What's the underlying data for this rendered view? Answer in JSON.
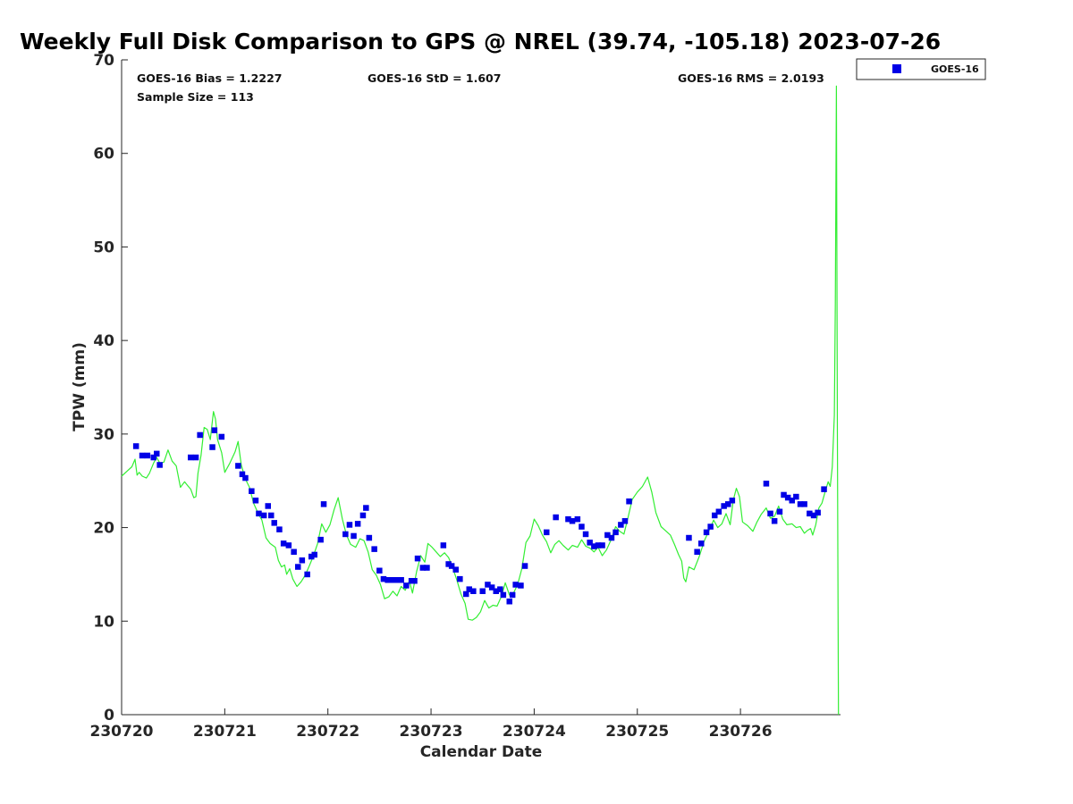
{
  "chart_data": {
    "type": "scatter",
    "title": "Weekly Full Disk Comparison to GPS @ NREL (39.74, -105.18) 2023-07-26",
    "xlabel": "Calendar Date",
    "ylabel": "TPW (mm)",
    "x_tick_labels": [
      "230720",
      "230721",
      "230722",
      "230723",
      "230724",
      "230725",
      "230726"
    ],
    "xlim": [
      0,
      6.97
    ],
    "ylim": [
      0,
      70
    ],
    "y_ticks": [
      0,
      10,
      20,
      30,
      40,
      50,
      60,
      70
    ],
    "grid": false,
    "legend": {
      "placement": "outside-top-right",
      "entries": [
        "GOES-16"
      ]
    },
    "annotations": {
      "bias": "GOES-16 Bias = 1.2227",
      "std": "GOES-16 StD = 1.607",
      "rms": "GOES-16 RMS = 2.0193",
      "sample_size": "Sample Size = 113"
    },
    "series": [
      {
        "name": "GOES-16",
        "kind": "scatter",
        "color": "#0000e6",
        "marker": "square",
        "points": [
          [
            0.14,
            28.7
          ],
          [
            0.2,
            27.7
          ],
          [
            0.25,
            27.7
          ],
          [
            0.31,
            27.5
          ],
          [
            0.34,
            27.9
          ],
          [
            0.37,
            26.7
          ],
          [
            0.67,
            27.5
          ],
          [
            0.72,
            27.5
          ],
          [
            0.76,
            29.9
          ],
          [
            0.88,
            28.6
          ],
          [
            0.9,
            30.4
          ],
          [
            0.97,
            29.7
          ],
          [
            1.13,
            26.6
          ],
          [
            1.17,
            25.7
          ],
          [
            1.2,
            25.3
          ],
          [
            1.26,
            23.9
          ],
          [
            1.3,
            22.9
          ],
          [
            1.33,
            21.5
          ],
          [
            1.38,
            21.3
          ],
          [
            1.42,
            22.3
          ],
          [
            1.45,
            21.3
          ],
          [
            1.48,
            20.5
          ],
          [
            1.53,
            19.8
          ],
          [
            1.57,
            18.3
          ],
          [
            1.62,
            18.1
          ],
          [
            1.67,
            17.4
          ],
          [
            1.71,
            15.8
          ],
          [
            1.75,
            16.5
          ],
          [
            1.8,
            15.0
          ],
          [
            1.84,
            16.9
          ],
          [
            1.87,
            17.1
          ],
          [
            1.93,
            18.7
          ],
          [
            1.96,
            22.5
          ],
          [
            2.17,
            19.3
          ],
          [
            2.21,
            20.3
          ],
          [
            2.25,
            19.1
          ],
          [
            2.29,
            20.4
          ],
          [
            2.34,
            21.3
          ],
          [
            2.37,
            22.1
          ],
          [
            2.4,
            18.9
          ],
          [
            2.45,
            17.7
          ],
          [
            2.5,
            15.4
          ],
          [
            2.54,
            14.5
          ],
          [
            2.58,
            14.4
          ],
          [
            2.62,
            14.4
          ],
          [
            2.66,
            14.4
          ],
          [
            2.71,
            14.4
          ],
          [
            2.76,
            13.8
          ],
          [
            2.81,
            14.3
          ],
          [
            2.84,
            14.3
          ],
          [
            2.87,
            16.7
          ],
          [
            2.92,
            15.7
          ],
          [
            2.96,
            15.7
          ],
          [
            3.12,
            18.1
          ],
          [
            3.17,
            16.1
          ],
          [
            3.2,
            15.9
          ],
          [
            3.24,
            15.5
          ],
          [
            3.28,
            14.5
          ],
          [
            3.34,
            12.9
          ],
          [
            3.37,
            13.4
          ],
          [
            3.41,
            13.2
          ],
          [
            3.5,
            13.2
          ],
          [
            3.55,
            13.9
          ],
          [
            3.59,
            13.6
          ],
          [
            3.63,
            13.2
          ],
          [
            3.67,
            13.4
          ],
          [
            3.7,
            12.8
          ],
          [
            3.76,
            12.1
          ],
          [
            3.79,
            12.8
          ],
          [
            3.82,
            13.9
          ],
          [
            3.87,
            13.8
          ],
          [
            3.91,
            15.9
          ],
          [
            4.12,
            19.5
          ],
          [
            4.21,
            21.1
          ],
          [
            4.33,
            20.9
          ],
          [
            4.37,
            20.7
          ],
          [
            4.42,
            20.9
          ],
          [
            4.46,
            20.1
          ],
          [
            4.5,
            19.3
          ],
          [
            4.54,
            18.4
          ],
          [
            4.58,
            18.0
          ],
          [
            4.62,
            18.1
          ],
          [
            4.66,
            18.1
          ],
          [
            4.71,
            19.2
          ],
          [
            4.75,
            18.9
          ],
          [
            4.79,
            19.5
          ],
          [
            4.84,
            20.3
          ],
          [
            4.88,
            20.7
          ],
          [
            4.92,
            22.8
          ],
          [
            5.5,
            18.9
          ],
          [
            5.58,
            17.4
          ],
          [
            5.62,
            18.3
          ],
          [
            5.67,
            19.5
          ],
          [
            5.71,
            20.1
          ],
          [
            5.75,
            21.3
          ],
          [
            5.79,
            21.7
          ],
          [
            5.84,
            22.3
          ],
          [
            5.88,
            22.5
          ],
          [
            5.92,
            22.9
          ],
          [
            6.25,
            24.7
          ],
          [
            6.29,
            21.5
          ],
          [
            6.33,
            20.7
          ],
          [
            6.38,
            21.7
          ],
          [
            6.42,
            23.5
          ],
          [
            6.46,
            23.2
          ],
          [
            6.5,
            22.9
          ],
          [
            6.54,
            23.3
          ],
          [
            6.58,
            22.5
          ],
          [
            6.62,
            22.5
          ],
          [
            6.67,
            21.5
          ],
          [
            6.71,
            21.3
          ],
          [
            6.75,
            21.6
          ],
          [
            6.81,
            24.1
          ]
        ]
      },
      {
        "kind": "line",
        "color": "#33ee33",
        "points": [
          [
            0.0,
            25.5
          ],
          [
            0.05,
            26.0
          ],
          [
            0.1,
            26.5
          ],
          [
            0.13,
            27.3
          ],
          [
            0.15,
            25.6
          ],
          [
            0.17,
            25.9
          ],
          [
            0.2,
            25.5
          ],
          [
            0.24,
            25.3
          ],
          [
            0.27,
            25.8
          ],
          [
            0.31,
            26.9
          ],
          [
            0.34,
            27.5
          ],
          [
            0.37,
            26.9
          ],
          [
            0.41,
            27.0
          ],
          [
            0.45,
            28.3
          ],
          [
            0.49,
            27.1
          ],
          [
            0.53,
            26.6
          ],
          [
            0.57,
            24.3
          ],
          [
            0.61,
            24.9
          ],
          [
            0.64,
            24.5
          ],
          [
            0.67,
            24.1
          ],
          [
            0.7,
            23.2
          ],
          [
            0.72,
            23.3
          ],
          [
            0.74,
            25.8
          ],
          [
            0.77,
            27.7
          ],
          [
            0.8,
            30.7
          ],
          [
            0.83,
            30.5
          ],
          [
            0.86,
            29.4
          ],
          [
            0.89,
            32.4
          ],
          [
            0.91,
            31.6
          ],
          [
            0.93,
            29.4
          ],
          [
            0.97,
            28.0
          ],
          [
            1.0,
            25.9
          ],
          [
            1.05,
            26.9
          ],
          [
            1.1,
            28.1
          ],
          [
            1.13,
            29.2
          ],
          [
            1.16,
            26.7
          ],
          [
            1.2,
            25.2
          ],
          [
            1.24,
            24.3
          ],
          [
            1.28,
            22.6
          ],
          [
            1.32,
            21.6
          ],
          [
            1.36,
            20.8
          ],
          [
            1.4,
            18.9
          ],
          [
            1.44,
            18.3
          ],
          [
            1.49,
            17.9
          ],
          [
            1.52,
            16.5
          ],
          [
            1.55,
            15.8
          ],
          [
            1.58,
            16.0
          ],
          [
            1.6,
            15.0
          ],
          [
            1.63,
            15.6
          ],
          [
            1.66,
            14.5
          ],
          [
            1.7,
            13.7
          ],
          [
            1.74,
            14.2
          ],
          [
            1.78,
            14.9
          ],
          [
            1.82,
            15.9
          ],
          [
            1.86,
            17.0
          ],
          [
            1.9,
            18.3
          ],
          [
            1.94,
            20.4
          ],
          [
            1.98,
            19.5
          ],
          [
            2.02,
            20.3
          ],
          [
            2.06,
            21.9
          ],
          [
            2.1,
            23.2
          ],
          [
            2.14,
            20.9
          ],
          [
            2.18,
            19.2
          ],
          [
            2.22,
            18.2
          ],
          [
            2.27,
            17.9
          ],
          [
            2.31,
            18.8
          ],
          [
            2.35,
            18.6
          ],
          [
            2.39,
            17.4
          ],
          [
            2.43,
            15.5
          ],
          [
            2.47,
            14.9
          ],
          [
            2.51,
            13.9
          ],
          [
            2.55,
            12.4
          ],
          [
            2.59,
            12.6
          ],
          [
            2.63,
            13.2
          ],
          [
            2.67,
            12.7
          ],
          [
            2.71,
            13.7
          ],
          [
            2.75,
            13.3
          ],
          [
            2.79,
            14.3
          ],
          [
            2.82,
            13.0
          ],
          [
            2.86,
            15.3
          ],
          [
            2.9,
            17.0
          ],
          [
            2.94,
            16.3
          ],
          [
            2.97,
            18.3
          ],
          [
            3.01,
            17.9
          ],
          [
            3.05,
            17.4
          ],
          [
            3.09,
            16.9
          ],
          [
            3.13,
            17.3
          ],
          [
            3.17,
            16.8
          ],
          [
            3.21,
            15.7
          ],
          [
            3.25,
            14.4
          ],
          [
            3.29,
            12.9
          ],
          [
            3.33,
            11.9
          ],
          [
            3.36,
            10.2
          ],
          [
            3.4,
            10.1
          ],
          [
            3.44,
            10.4
          ],
          [
            3.48,
            11.0
          ],
          [
            3.52,
            12.2
          ],
          [
            3.56,
            11.4
          ],
          [
            3.6,
            11.7
          ],
          [
            3.64,
            11.6
          ],
          [
            3.68,
            12.6
          ],
          [
            3.72,
            14.1
          ],
          [
            3.76,
            12.8
          ],
          [
            3.8,
            13.0
          ],
          [
            3.84,
            13.9
          ],
          [
            3.88,
            15.6
          ],
          [
            3.92,
            18.4
          ],
          [
            3.96,
            19.1
          ],
          [
            4.0,
            20.9
          ],
          [
            4.04,
            20.2
          ],
          [
            4.08,
            19.2
          ],
          [
            4.12,
            18.5
          ],
          [
            4.16,
            17.3
          ],
          [
            4.2,
            18.2
          ],
          [
            4.24,
            18.6
          ],
          [
            4.28,
            18.1
          ],
          [
            4.33,
            17.6
          ],
          [
            4.37,
            18.1
          ],
          [
            4.42,
            17.9
          ],
          [
            4.46,
            18.7
          ],
          [
            4.5,
            18.0
          ],
          [
            4.54,
            17.8
          ],
          [
            4.58,
            17.4
          ],
          [
            4.62,
            17.9
          ],
          [
            4.66,
            17.0
          ],
          [
            4.7,
            17.6
          ],
          [
            4.75,
            18.8
          ],
          [
            4.79,
            20.1
          ],
          [
            4.83,
            19.6
          ],
          [
            4.87,
            19.3
          ],
          [
            4.91,
            21.1
          ],
          [
            4.95,
            23.0
          ],
          [
            5.0,
            23.8
          ],
          [
            5.05,
            24.4
          ],
          [
            5.1,
            25.4
          ],
          [
            5.14,
            23.8
          ],
          [
            5.18,
            21.6
          ],
          [
            5.23,
            20.1
          ],
          [
            5.27,
            19.7
          ],
          [
            5.32,
            19.2
          ],
          [
            5.36,
            18.2
          ],
          [
            5.4,
            17.1
          ],
          [
            5.43,
            16.4
          ],
          [
            5.45,
            14.6
          ],
          [
            5.47,
            14.2
          ],
          [
            5.5,
            15.8
          ],
          [
            5.55,
            15.5
          ],
          [
            5.6,
            16.9
          ],
          [
            5.65,
            18.6
          ],
          [
            5.7,
            19.8
          ],
          [
            5.74,
            20.8
          ],
          [
            5.78,
            20.0
          ],
          [
            5.82,
            20.4
          ],
          [
            5.86,
            21.5
          ],
          [
            5.9,
            20.3
          ],
          [
            5.93,
            22.9
          ],
          [
            5.96,
            24.2
          ],
          [
            5.99,
            23.3
          ],
          [
            6.02,
            20.6
          ],
          [
            6.07,
            20.2
          ],
          [
            6.12,
            19.6
          ],
          [
            6.16,
            20.6
          ],
          [
            6.2,
            21.4
          ],
          [
            6.25,
            22.1
          ],
          [
            6.29,
            21.0
          ],
          [
            6.33,
            21.2
          ],
          [
            6.37,
            22.3
          ],
          [
            6.41,
            20.9
          ],
          [
            6.45,
            20.3
          ],
          [
            6.5,
            20.4
          ],
          [
            6.54,
            20.0
          ],
          [
            6.58,
            20.1
          ],
          [
            6.62,
            19.4
          ],
          [
            6.65,
            19.7
          ],
          [
            6.68,
            19.9
          ],
          [
            6.7,
            19.2
          ],
          [
            6.73,
            20.3
          ],
          [
            6.76,
            22.1
          ],
          [
            6.79,
            22.6
          ],
          [
            6.82,
            23.8
          ],
          [
            6.85,
            24.9
          ],
          [
            6.87,
            24.4
          ],
          [
            6.89,
            26.5
          ],
          [
            6.91,
            32.0
          ],
          [
            6.92,
            44.0
          ],
          [
            6.93,
            67.2
          ],
          [
            6.94,
            30.0
          ],
          [
            6.95,
            0.0
          ]
        ]
      }
    ]
  }
}
